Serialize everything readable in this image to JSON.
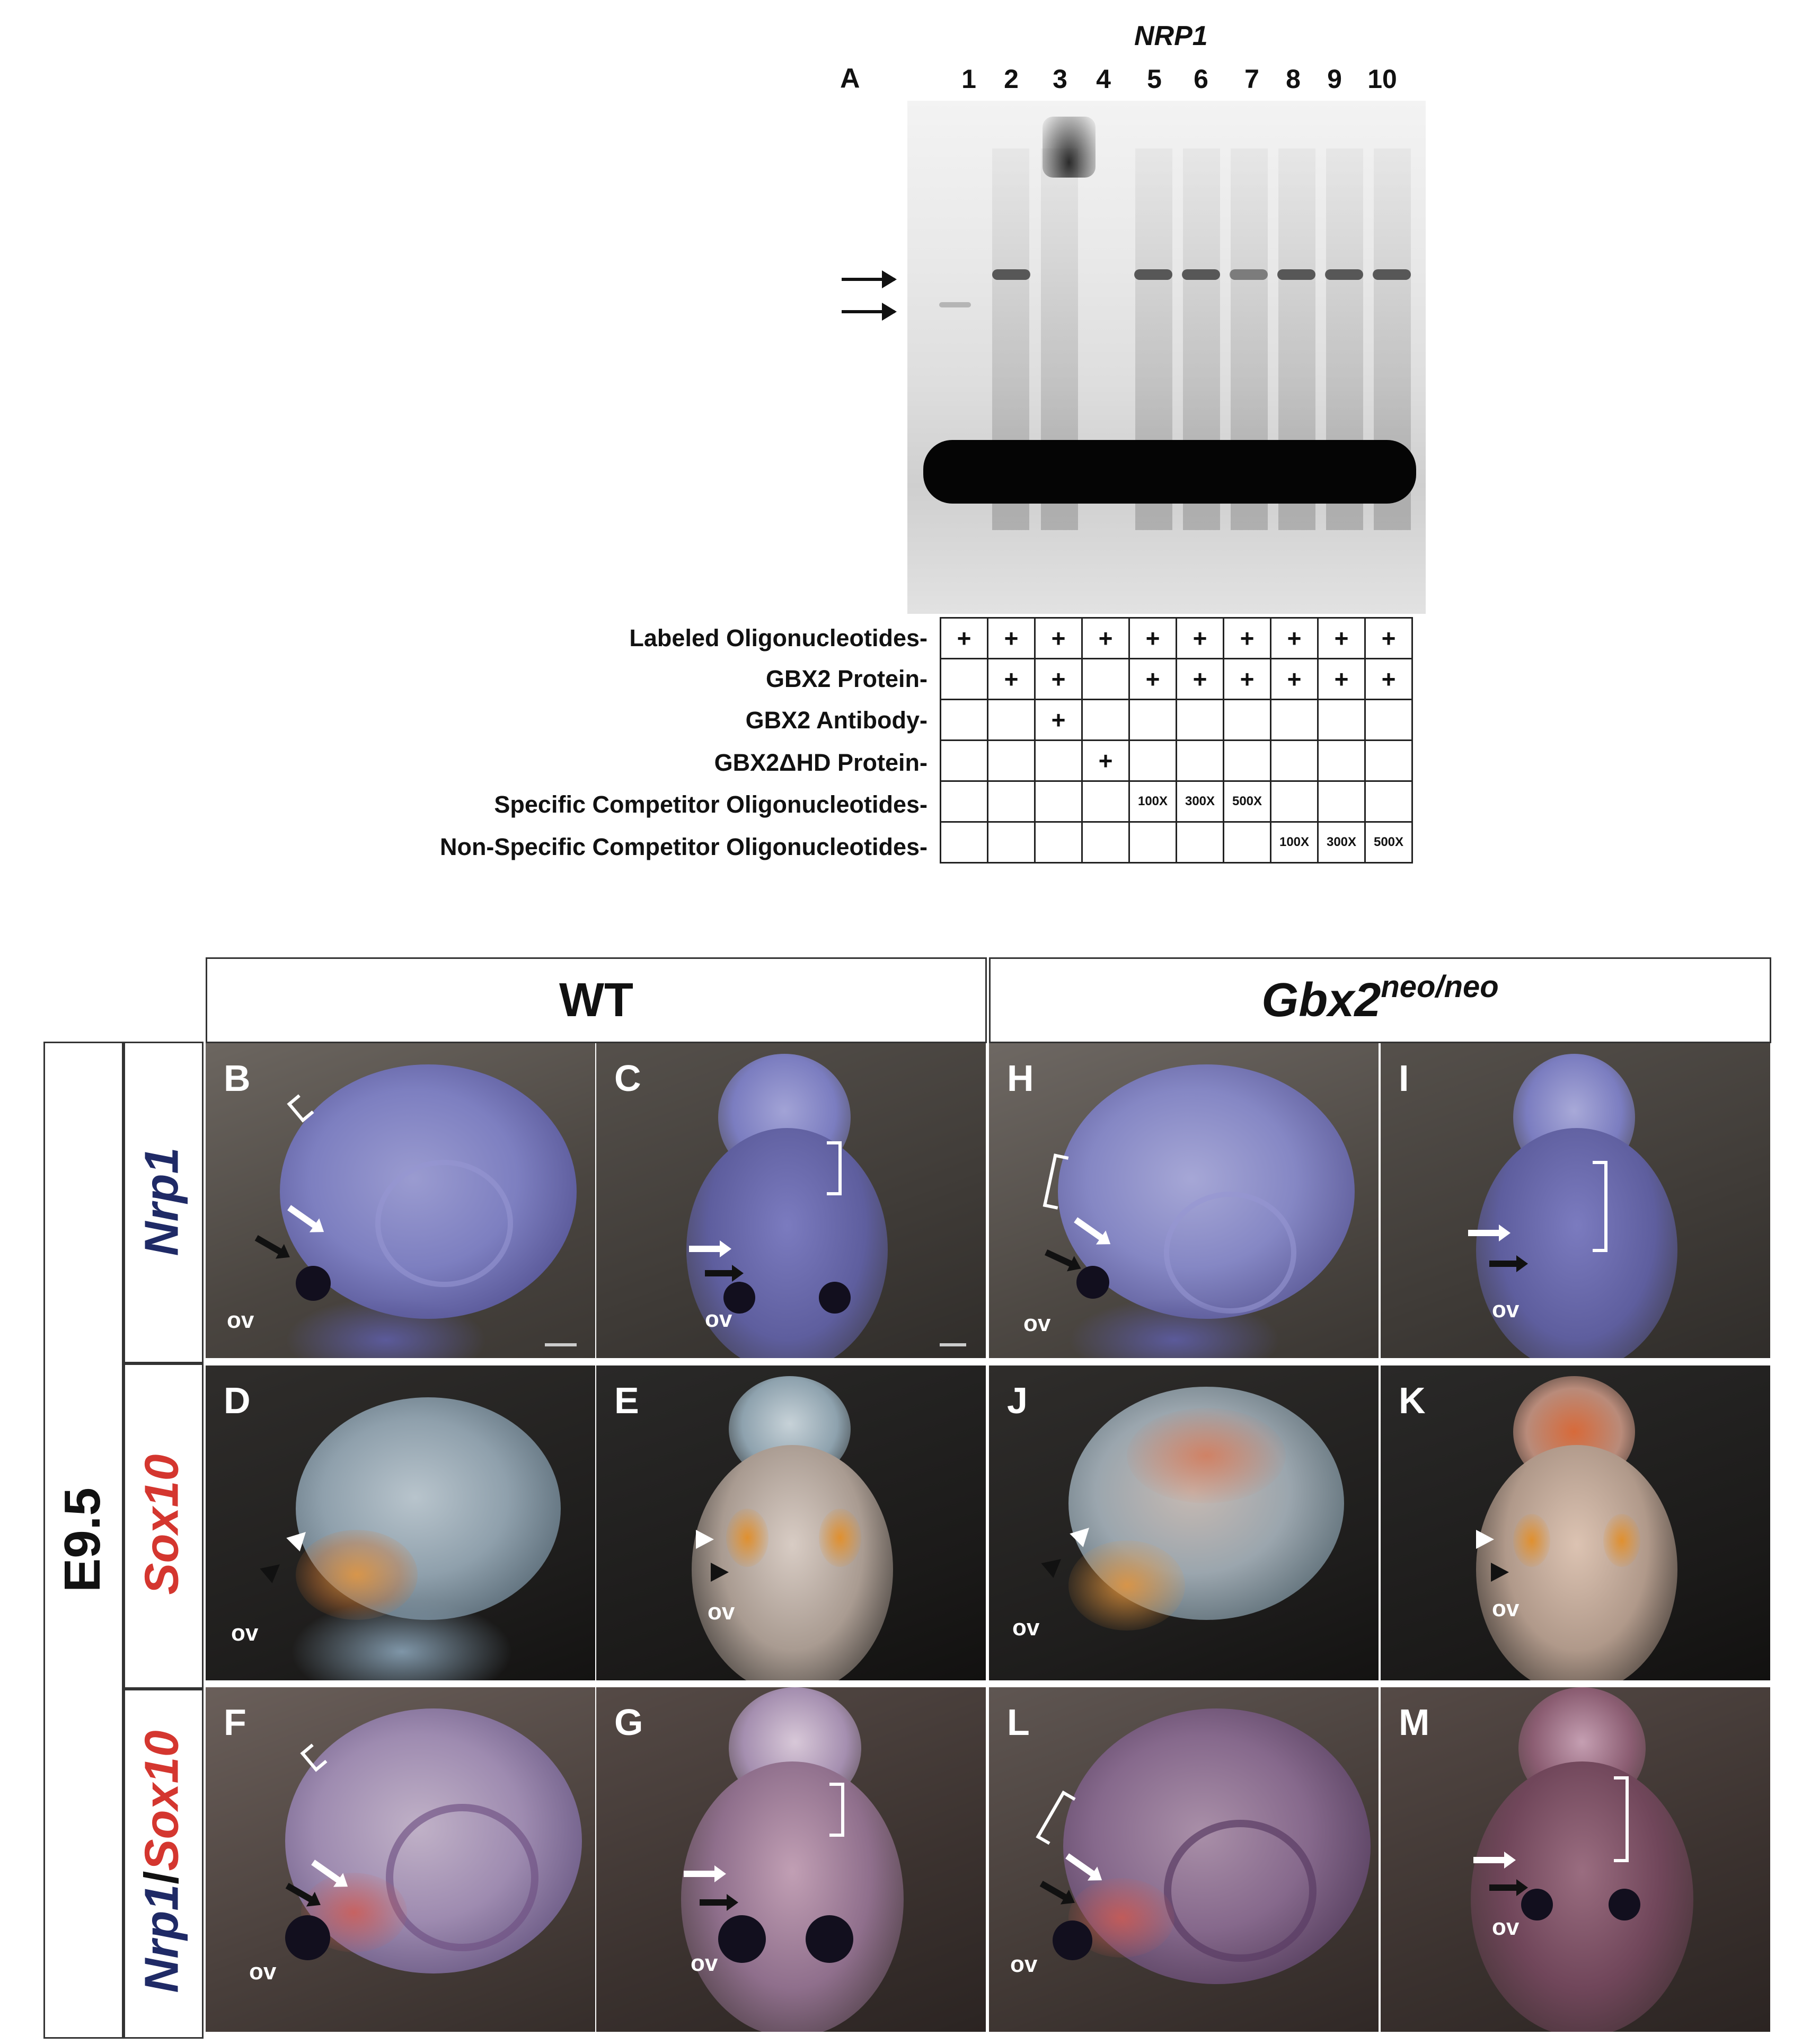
{
  "panel_a": {
    "letter": "A",
    "gene": "NRP1",
    "lanes": [
      "1",
      "2",
      "3",
      "4",
      "5",
      "6",
      "7",
      "8",
      "9",
      "10"
    ],
    "rows": [
      {
        "label": "Labeled Oligonucleotides-",
        "cells": [
          "+",
          "+",
          "+",
          "+",
          "+",
          "+",
          "+",
          "+",
          "+",
          "+"
        ]
      },
      {
        "label": "GBX2 Protein-",
        "cells": [
          "",
          "+",
          "+",
          "",
          "+",
          "+",
          "+",
          "+",
          "+",
          "+"
        ]
      },
      {
        "label": "GBX2 Antibody-",
        "cells": [
          "",
          "",
          "+",
          "",
          "",
          "",
          "",
          "",
          "",
          ""
        ]
      },
      {
        "label": "GBX2ΔHD Protein-",
        "cells": [
          "",
          "",
          "",
          "+",
          "",
          "",
          "",
          "",
          "",
          ""
        ]
      },
      {
        "label": "Specific Competitor Oligonucleotides-",
        "cells": [
          "",
          "",
          "",
          "",
          "100X",
          "300X",
          "500X",
          "",
          "",
          ""
        ]
      },
      {
        "label": "Non-Specific Competitor Oligonucleotides-",
        "cells": [
          "",
          "",
          "",
          "",
          "",
          "",
          "",
          "100X",
          "300X",
          "500X"
        ]
      }
    ]
  },
  "figure": {
    "genotype_wt": "WT",
    "genotype_mut": "Gbx2",
    "genotype_mut_sup": "neo/neo",
    "stage": "E9.5",
    "genes": {
      "nrp1": "Nrp1",
      "sox10": "Sox10",
      "combo_a": "Nrp1",
      "combo_sep": "/",
      "combo_b": "Sox10"
    },
    "ov_label": "ov",
    "panels": [
      "B",
      "C",
      "H",
      "I",
      "D",
      "E",
      "J",
      "K",
      "F",
      "G",
      "L",
      "M"
    ]
  },
  "colors": {
    "nrp1_blue": "#1f2a66",
    "sox10_red": "#d4362f",
    "gel_band": "#050505"
  }
}
